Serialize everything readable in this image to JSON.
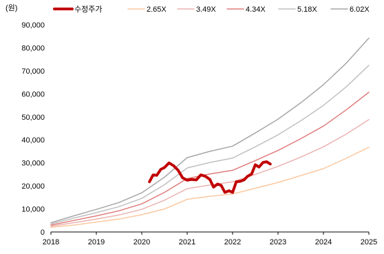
{
  "chart_data": {
    "type": "line",
    "unit_label": "(원)",
    "x_ticks": [
      "2018",
      "2019",
      "2020",
      "2021",
      "2022",
      "2023",
      "2024",
      "2025"
    ],
    "xlim": [
      2018,
      2025
    ],
    "ylim": [
      0,
      90000
    ],
    "y_ticks": [
      "0",
      "10,000",
      "20,000",
      "30,000",
      "40,000",
      "50,000",
      "60,000",
      "70,000",
      "80,000",
      "90,000"
    ],
    "grid": false,
    "legend_position": "top",
    "series": [
      {
        "name": "수정주가",
        "color": "#c00000",
        "width": 4,
        "points": [
          [
            2020.17,
            21800
          ],
          [
            2020.25,
            24800
          ],
          [
            2020.33,
            24600
          ],
          [
            2020.42,
            27200
          ],
          [
            2020.5,
            28000
          ],
          [
            2020.6,
            30000
          ],
          [
            2020.7,
            28800
          ],
          [
            2020.8,
            26800
          ],
          [
            2020.9,
            23500
          ],
          [
            2021.0,
            22500
          ],
          [
            2021.1,
            22800
          ],
          [
            2021.2,
            22600
          ],
          [
            2021.3,
            24800
          ],
          [
            2021.4,
            24200
          ],
          [
            2021.5,
            22800
          ],
          [
            2021.58,
            19500
          ],
          [
            2021.67,
            20800
          ],
          [
            2021.75,
            20200
          ],
          [
            2021.83,
            17200
          ],
          [
            2021.92,
            17900
          ],
          [
            2022.0,
            17200
          ],
          [
            2022.08,
            21800
          ],
          [
            2022.17,
            22000
          ],
          [
            2022.25,
            22600
          ],
          [
            2022.33,
            24200
          ],
          [
            2022.42,
            25200
          ],
          [
            2022.5,
            29200
          ],
          [
            2022.58,
            28200
          ],
          [
            2022.67,
            30200
          ],
          [
            2022.75,
            30500
          ],
          [
            2022.83,
            29500
          ]
        ]
      },
      {
        "name": "2.65X",
        "color": "#fbc8a0",
        "width": 1.5,
        "points": [
          [
            2018.0,
            2000
          ],
          [
            2018.5,
            3000
          ],
          [
            2019.0,
            4300
          ],
          [
            2019.5,
            5600
          ],
          [
            2020.0,
            7500
          ],
          [
            2020.5,
            10000
          ],
          [
            2021.0,
            14200
          ],
          [
            2021.5,
            15500
          ],
          [
            2022.0,
            16500
          ],
          [
            2022.5,
            19000
          ],
          [
            2023.0,
            21500
          ],
          [
            2023.5,
            24500
          ],
          [
            2024.0,
            27500
          ],
          [
            2024.5,
            32000
          ],
          [
            2025.0,
            36800
          ]
        ]
      },
      {
        "name": "3.49X",
        "color": "#eab2b0",
        "width": 1.5,
        "points": [
          [
            2018.0,
            2500
          ],
          [
            2018.5,
            4000
          ],
          [
            2019.0,
            5600
          ],
          [
            2019.5,
            7400
          ],
          [
            2020.0,
            9800
          ],
          [
            2020.5,
            13800
          ],
          [
            2021.0,
            18800
          ],
          [
            2021.5,
            20400
          ],
          [
            2022.0,
            21800
          ],
          [
            2022.5,
            25000
          ],
          [
            2023.0,
            28500
          ],
          [
            2023.5,
            32500
          ],
          [
            2024.0,
            37000
          ],
          [
            2024.5,
            42500
          ],
          [
            2025.0,
            48800
          ]
        ]
      },
      {
        "name": "4.34X",
        "color": "#df7b7b",
        "width": 1.5,
        "points": [
          [
            2018.0,
            3000
          ],
          [
            2018.5,
            5000
          ],
          [
            2019.0,
            7000
          ],
          [
            2019.5,
            9200
          ],
          [
            2020.0,
            12200
          ],
          [
            2020.5,
            17200
          ],
          [
            2021.0,
            23200
          ],
          [
            2021.5,
            25200
          ],
          [
            2022.0,
            26800
          ],
          [
            2022.5,
            31000
          ],
          [
            2023.0,
            35400
          ],
          [
            2023.5,
            40500
          ],
          [
            2024.0,
            46000
          ],
          [
            2024.5,
            53000
          ],
          [
            2025.0,
            60700
          ]
        ]
      },
      {
        "name": "5.18X",
        "color": "#c0c0c0",
        "width": 1.5,
        "points": [
          [
            2018.0,
            3500
          ],
          [
            2018.5,
            6000
          ],
          [
            2019.0,
            8400
          ],
          [
            2019.5,
            11000
          ],
          [
            2020.0,
            14600
          ],
          [
            2020.5,
            20500
          ],
          [
            2021.0,
            27800
          ],
          [
            2021.5,
            30200
          ],
          [
            2022.0,
            32100
          ],
          [
            2022.5,
            37000
          ],
          [
            2023.0,
            42200
          ],
          [
            2023.5,
            48300
          ],
          [
            2024.0,
            55000
          ],
          [
            2024.5,
            63000
          ],
          [
            2025.0,
            72400
          ]
        ]
      },
      {
        "name": "6.02X",
        "color": "#a6a6a6",
        "width": 1.5,
        "points": [
          [
            2018.0,
            4000
          ],
          [
            2018.5,
            7000
          ],
          [
            2019.0,
            9800
          ],
          [
            2019.5,
            12800
          ],
          [
            2020.0,
            17000
          ],
          [
            2020.5,
            23800
          ],
          [
            2021.0,
            32300
          ],
          [
            2021.5,
            35000
          ],
          [
            2022.0,
            37300
          ],
          [
            2022.5,
            43000
          ],
          [
            2023.0,
            49000
          ],
          [
            2023.5,
            56100
          ],
          [
            2024.0,
            64000
          ],
          [
            2024.5,
            73300
          ],
          [
            2025.0,
            84200
          ]
        ]
      }
    ]
  }
}
